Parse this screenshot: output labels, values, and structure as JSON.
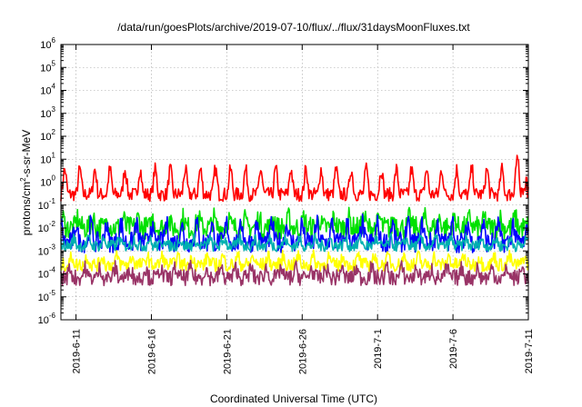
{
  "chart_data": {
    "type": "line",
    "title": "/data/run/goesPlots/archive/2019-07-10/flux/../flux/31daysMoonFluxes.txt",
    "xlabel": "Coordinated Universal Time (UTC)",
    "ylabel": {
      "pre": "protons/cm",
      "sup": "2",
      "post": "-s-sr-MeV"
    },
    "y_scale": "log",
    "ylim": [
      1e-06,
      1000000.0
    ],
    "y_ticks": [
      {
        "base": "10",
        "exp": "6"
      },
      {
        "base": "10",
        "exp": "5"
      },
      {
        "base": "10",
        "exp": "4"
      },
      {
        "base": "10",
        "exp": "3"
      },
      {
        "base": "10",
        "exp": "2"
      },
      {
        "base": "10",
        "exp": "1"
      },
      {
        "base": "10",
        "exp": "0"
      },
      {
        "base": "10",
        "exp": "-1"
      },
      {
        "base": "10",
        "exp": "-2"
      },
      {
        "base": "10",
        "exp": "-3"
      },
      {
        "base": "10",
        "exp": "-4"
      },
      {
        "base": "10",
        "exp": "-5"
      },
      {
        "base": "10",
        "exp": "-6"
      }
    ],
    "x_range": [
      "2019-06-10",
      "2019-07-11"
    ],
    "x_ticks": [
      "2019-6-11",
      "2019-6-16",
      "2019-6-21",
      "2019-6-26",
      "2019-7-1",
      "2019-7-6",
      "2019-7-11"
    ],
    "grid": true,
    "series": [
      {
        "color": "#ff0000",
        "center": 0.8,
        "amplitude": 3.5,
        "noise": 0.3
      },
      {
        "color": "#00e000",
        "center": 0.015,
        "amplitude": 1.6,
        "noise": 0.5
      },
      {
        "color": "#0000ff",
        "center": 0.005,
        "amplitude": 2.5,
        "noise": 0.45
      },
      {
        "color": "#00b0b0",
        "center": 0.0022,
        "amplitude": 1.4,
        "noise": 0.25
      },
      {
        "color": "#ffff00",
        "center": 0.00035,
        "amplitude": 1.5,
        "noise": 0.3
      },
      {
        "color": "#993366",
        "center": 0.0001,
        "amplitude": 1.6,
        "noise": 0.35
      }
    ]
  }
}
